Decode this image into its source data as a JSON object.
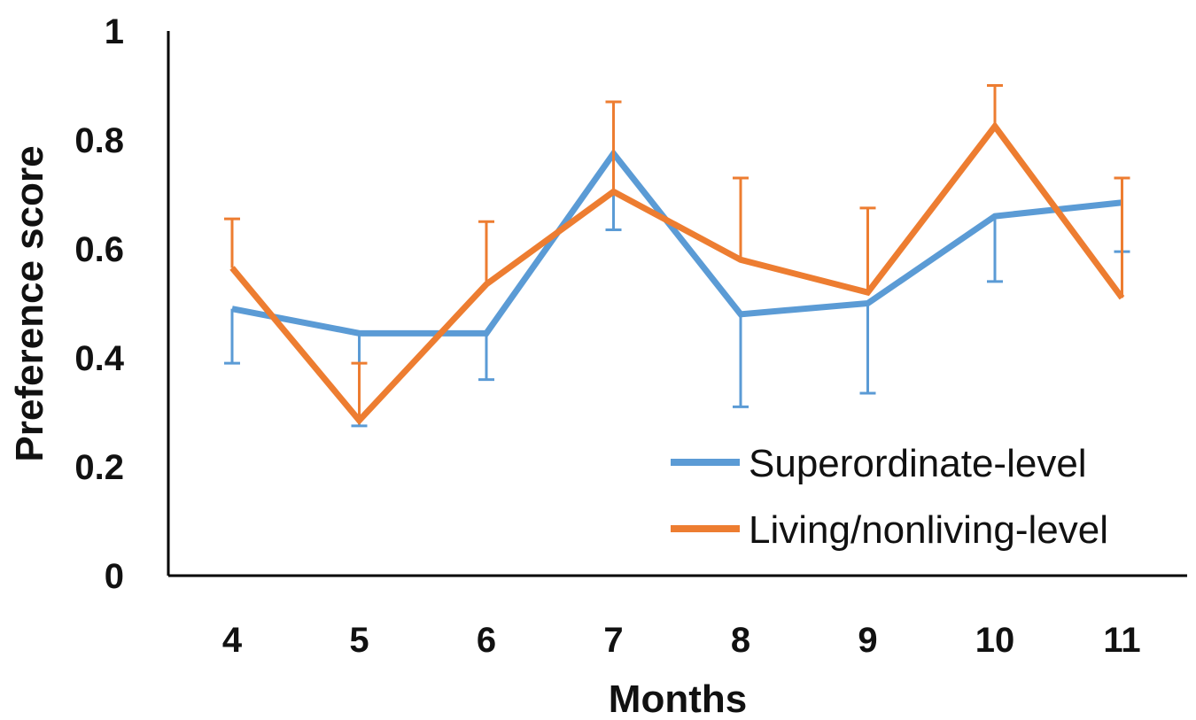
{
  "chart_data": {
    "type": "line",
    "title": "",
    "xlabel": "Months",
    "ylabel": "Preference score",
    "categories": [
      "4",
      "5",
      "6",
      "7",
      "8",
      "9",
      "10",
      "11"
    ],
    "ylim": [
      0,
      1
    ],
    "yticks": [
      "0",
      "0.2",
      "0.4",
      "0.6",
      "0.8",
      "1"
    ],
    "grid": false,
    "legend_position": "bottom-right",
    "series": [
      {
        "name": "Superordinate-level",
        "color": "#5B9BD5",
        "values": [
          0.49,
          0.445,
          0.445,
          0.775,
          0.48,
          0.5,
          0.66,
          0.685
        ],
        "error": [
          0.1,
          0.17,
          0.085,
          0.14,
          0.17,
          0.165,
          0.12,
          0.09
        ],
        "error_direction": "down"
      },
      {
        "name": "Living/nonliving-level",
        "color": "#ED7D31",
        "values": [
          0.565,
          0.285,
          0.535,
          0.705,
          0.58,
          0.52,
          0.825,
          0.51
        ],
        "error": [
          0.09,
          0.105,
          0.115,
          0.165,
          0.15,
          0.155,
          0.075,
          0.22
        ],
        "error_direction": "up"
      }
    ]
  }
}
